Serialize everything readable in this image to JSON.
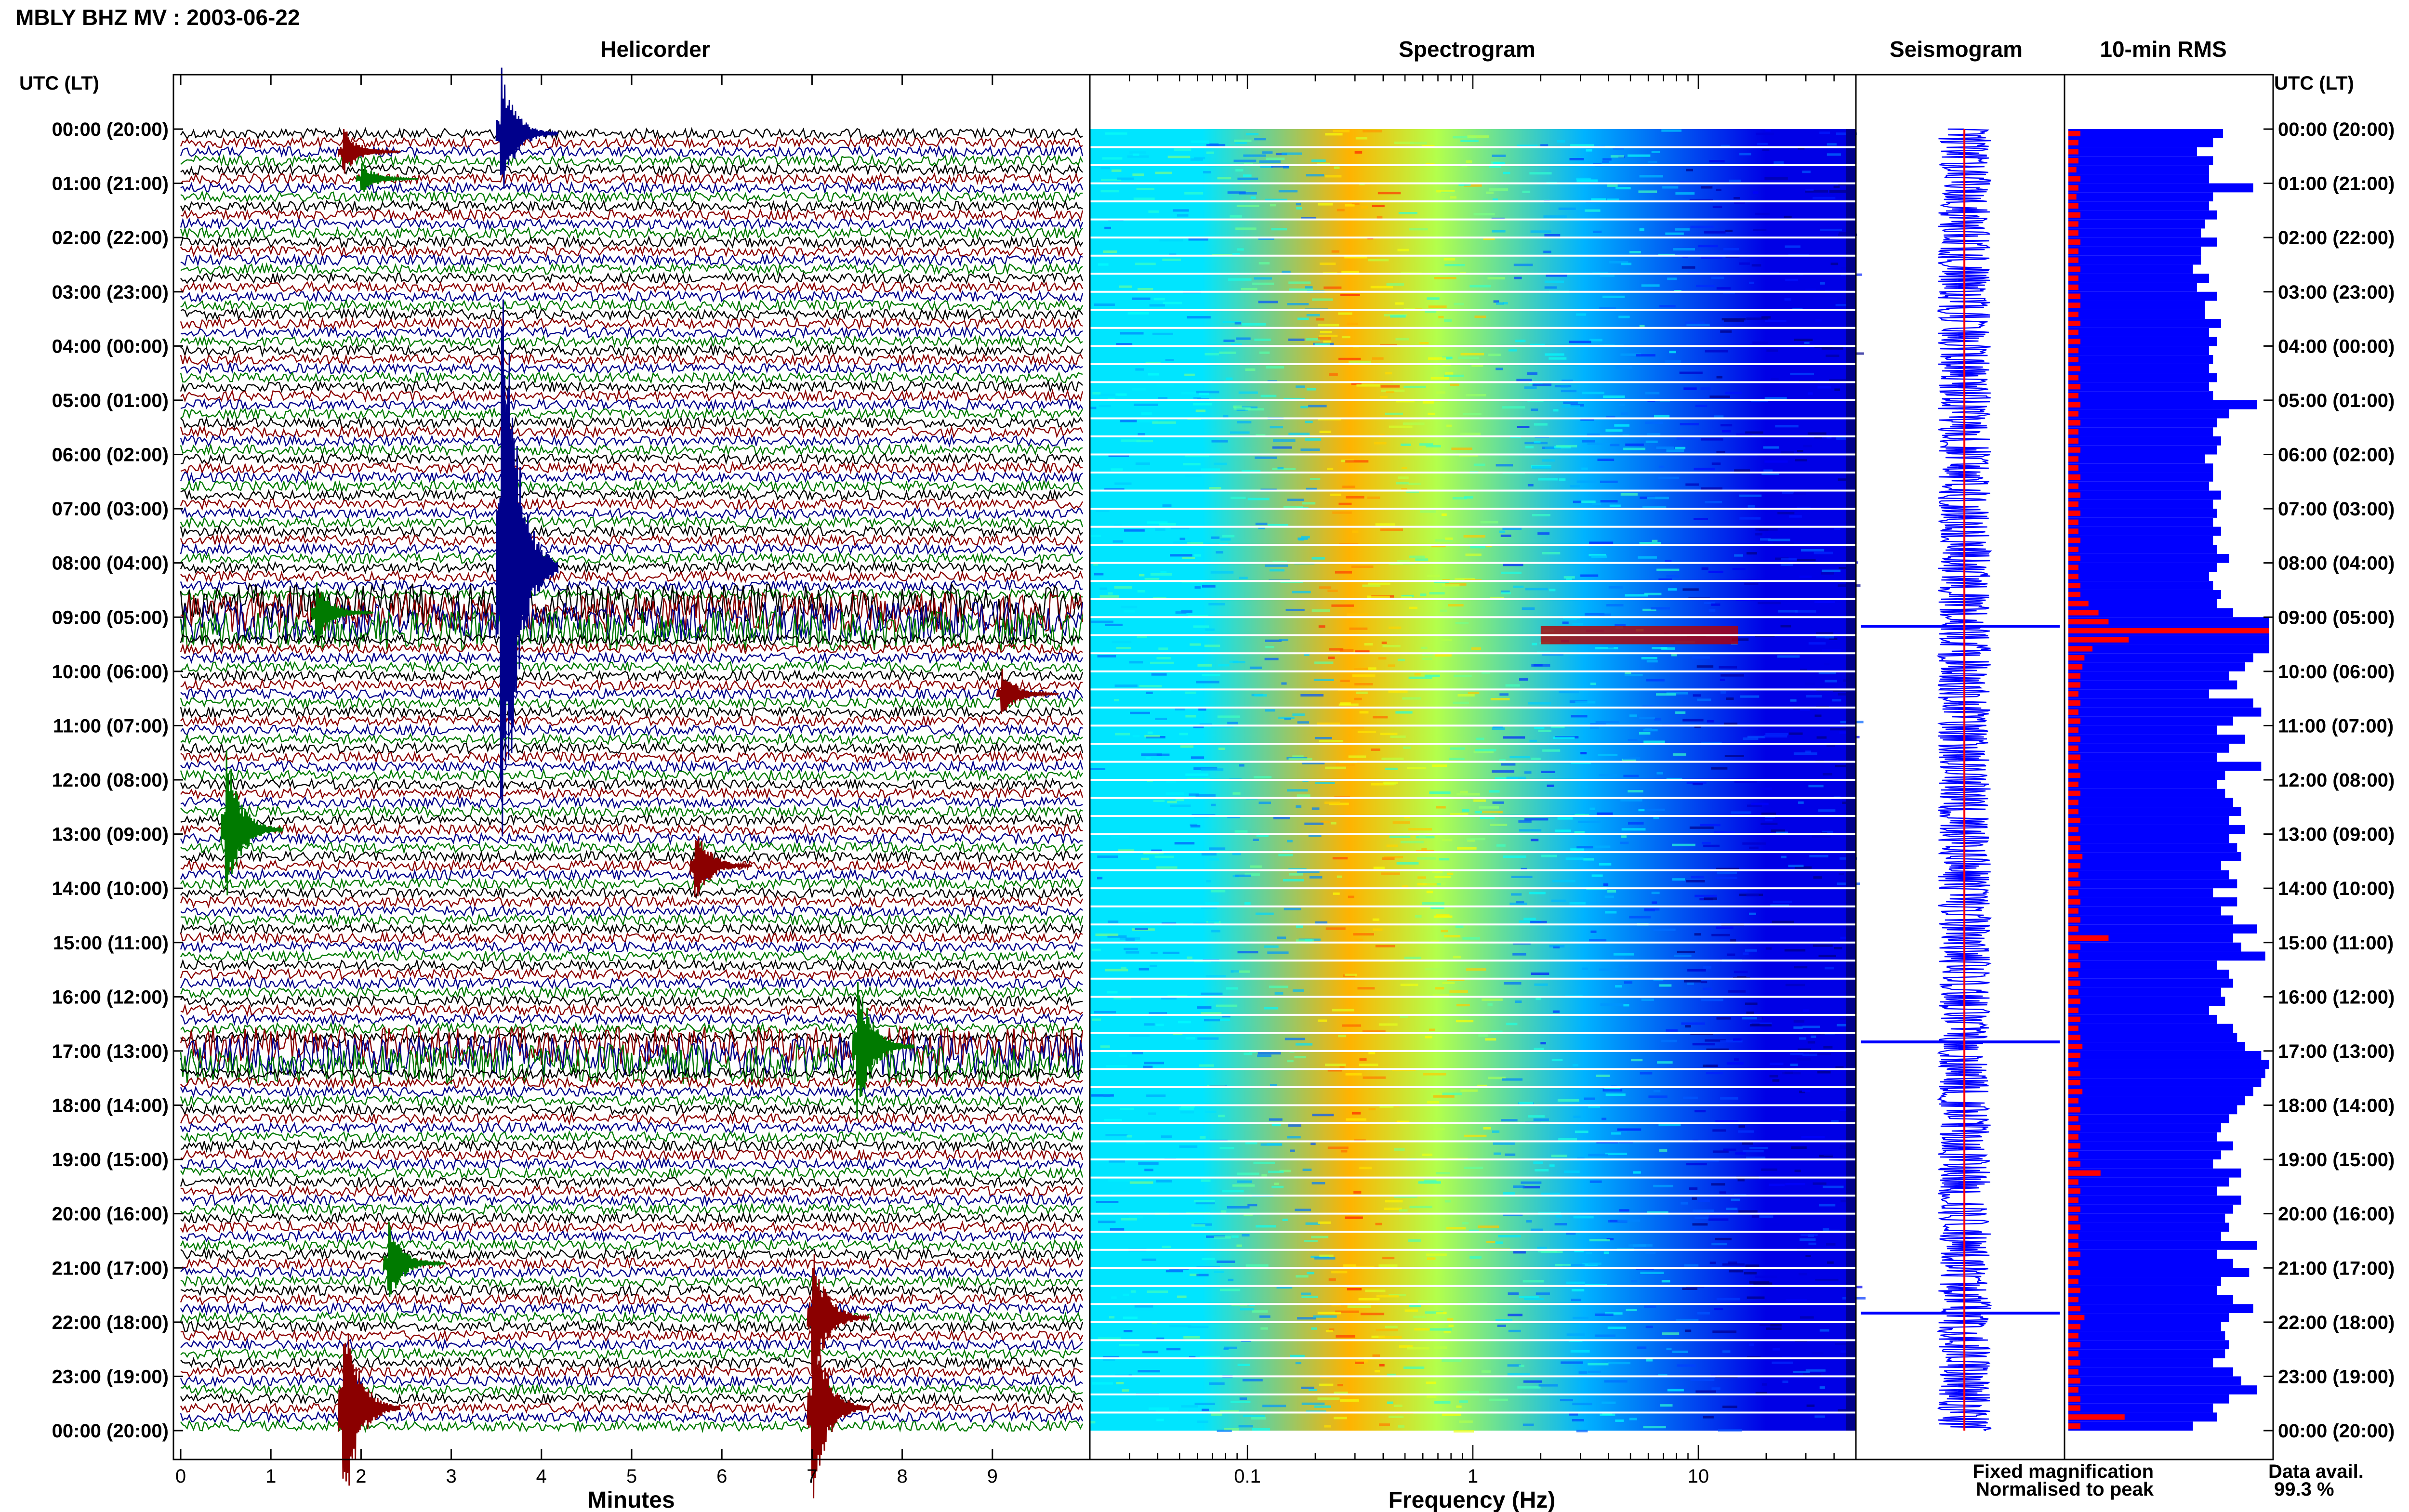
{
  "header": {
    "station_title": "MBLY BHZ MV : 2003-06-22",
    "time_axis_label": "UTC (LT)"
  },
  "panels": {
    "helicorder": "Helicorder",
    "spectrogram": "Spectrogram",
    "seismogram": "Seismogram",
    "rms": "10-min RMS"
  },
  "time_labels": [
    "00:00 (20:00)",
    "01:00 (21:00)",
    "02:00 (22:00)",
    "03:00 (23:00)",
    "04:00 (00:00)",
    "05:00 (01:00)",
    "06:00 (02:00)",
    "07:00 (03:00)",
    "08:00 (04:00)",
    "09:00 (05:00)",
    "10:00 (06:00)",
    "11:00 (07:00)",
    "12:00 (08:00)",
    "13:00 (09:00)",
    "14:00 (10:00)",
    "15:00 (11:00)",
    "16:00 (12:00)",
    "17:00 (13:00)",
    "18:00 (14:00)",
    "19:00 (15:00)",
    "20:00 (16:00)",
    "21:00 (17:00)",
    "22:00 (18:00)",
    "23:00 (19:00)",
    "00:00 (20:00)"
  ],
  "legend": {
    "fixed": "Fixed magnification",
    "normalised": "Normalised to peak",
    "fixed_color": "#0000ff",
    "normalised_color": "#ff0000",
    "avail_label": "Data avail.",
    "avail_value": "99.3 %"
  },
  "colors": {
    "trace_cycle": [
      "#000000",
      "#8b0000",
      "#00008b",
      "#007a00"
    ],
    "rms_blue": "#0000ff",
    "rms_red": "#ff0000"
  },
  "chart_data": [
    {
      "type": "line",
      "panel": "helicorder",
      "xlabel": "Minutes",
      "x_ticks": [
        "0",
        "1",
        "2",
        "3",
        "4",
        "5",
        "6",
        "7",
        "8",
        "9"
      ],
      "xlim": [
        0,
        10
      ],
      "rows": 144,
      "events": [
        {
          "row": 2,
          "minute": 1.8,
          "amp": 3,
          "color": 1
        },
        {
          "row": 5,
          "minute": 2.0,
          "amp": 2,
          "color": 3
        },
        {
          "row": 0,
          "minute": 3.55,
          "amp": 8,
          "color": 2
        },
        {
          "row": 48,
          "minute": 3.55,
          "amp": 45,
          "color": 2
        },
        {
          "row": 53,
          "minute": 1.5,
          "amp": 4,
          "color": 3
        },
        {
          "row": 62,
          "minute": 9.1,
          "amp": 3,
          "color": 1
        },
        {
          "row": 77,
          "minute": 0.5,
          "amp": 10,
          "color": 3
        },
        {
          "row": 81,
          "minute": 5.7,
          "amp": 5,
          "color": 1
        },
        {
          "row": 101,
          "minute": 7.5,
          "amp": 9,
          "color": 3
        },
        {
          "row": 125,
          "minute": 2.3,
          "amp": 5,
          "color": 3
        },
        {
          "row": 131,
          "minute": 7.0,
          "amp": 9,
          "color": 1
        },
        {
          "row": 141,
          "minute": 1.8,
          "amp": 14,
          "color": 1
        },
        {
          "row": 141,
          "minute": 7.0,
          "amp": 12,
          "color": 1
        }
      ],
      "noisy_rows": [
        52,
        53,
        54,
        55,
        101,
        102,
        103
      ]
    },
    {
      "type": "heatmap",
      "panel": "spectrogram",
      "xlabel": "Frequency (Hz)",
      "x_scale": "log",
      "x_ticks": [
        "0.1",
        "1",
        "10"
      ],
      "xlim": [
        0.02,
        50
      ],
      "bands_hz": [
        {
          "from": 0.02,
          "to": 0.2,
          "level": 0.35
        },
        {
          "from": 0.2,
          "to": 0.4,
          "level": 0.7
        },
        {
          "from": 0.4,
          "to": 1.2,
          "level": 0.55
        },
        {
          "from": 1.2,
          "to": 8,
          "level": 0.3
        },
        {
          "from": 8,
          "to": 50,
          "level": 0.1
        }
      ],
      "event_rows": [
        {
          "row": 55,
          "from_hz": 2,
          "to_hz": 15,
          "level": 0.95
        }
      ]
    },
    {
      "type": "line",
      "panel": "seismogram",
      "description_values": {
        "baseline_halfwidth": 0.2,
        "spike_rows": [
          55,
          101,
          131
        ]
      }
    },
    {
      "type": "bar",
      "panel": "rms",
      "orientation": "horizontal",
      "fixed_magnification_values": [
        0.77,
        0.72,
        0.64,
        0.72,
        0.7,
        0.7,
        0.92,
        0.72,
        0.7,
        0.74,
        0.68,
        0.66,
        0.74,
        0.66,
        0.66,
        0.62,
        0.7,
        0.64,
        0.74,
        0.68,
        0.68,
        0.76,
        0.7,
        0.74,
        0.7,
        0.72,
        0.7,
        0.74,
        0.7,
        0.72,
        0.94,
        0.8,
        0.74,
        0.72,
        0.76,
        0.74,
        0.68,
        0.72,
        0.72,
        0.7,
        0.76,
        0.72,
        0.74,
        0.72,
        0.76,
        0.72,
        0.74,
        0.8,
        0.74,
        0.7,
        0.72,
        0.76,
        0.74,
        0.82,
        1.0,
        1.0,
        1.0,
        1.0,
        0.92,
        0.88,
        0.8,
        0.84,
        0.7,
        0.92,
        0.96,
        0.82,
        0.74,
        0.88,
        0.8,
        0.74,
        0.96,
        0.78,
        0.74,
        0.78,
        0.82,
        0.86,
        0.8,
        0.88,
        0.8,
        0.84,
        0.86,
        0.76,
        0.8,
        0.84,
        0.72,
        0.84,
        0.76,
        0.82,
        0.94,
        0.82,
        0.86,
        0.98,
        0.74,
        0.8,
        0.82,
        0.76,
        0.78,
        0.7,
        0.74,
        0.82,
        0.84,
        0.88,
        0.96,
        1.0,
        0.98,
        0.96,
        0.92,
        0.88,
        0.84,
        0.8,
        0.76,
        0.74,
        0.82,
        0.76,
        0.72,
        0.86,
        0.8,
        0.74,
        0.86,
        0.82,
        0.78,
        0.8,
        0.76,
        0.94,
        0.74,
        0.82,
        0.9,
        0.76,
        0.74,
        0.82,
        0.92,
        0.8,
        0.76,
        0.78,
        0.8,
        0.78,
        0.72,
        0.82,
        0.86,
        0.94,
        0.8,
        0.72,
        0.74,
        0.62
      ],
      "normalised_values": [
        0.06,
        0.05,
        0.05,
        0.05,
        0.04,
        0.06,
        0.05,
        0.04,
        0.05,
        0.06,
        0.05,
        0.05,
        0.06,
        0.05,
        0.05,
        0.06,
        0.05,
        0.05,
        0.06,
        0.06,
        0.05,
        0.06,
        0.05,
        0.06,
        0.05,
        0.05,
        0.06,
        0.05,
        0.06,
        0.05,
        0.06,
        0.05,
        0.06,
        0.05,
        0.05,
        0.06,
        0.05,
        0.05,
        0.06,
        0.05,
        0.06,
        0.05,
        0.06,
        0.05,
        0.05,
        0.06,
        0.05,
        0.06,
        0.05,
        0.05,
        0.06,
        0.06,
        0.1,
        0.15,
        0.2,
        1.0,
        0.3,
        0.12,
        0.08,
        0.07,
        0.06,
        0.06,
        0.05,
        0.06,
        0.05,
        0.06,
        0.05,
        0.06,
        0.05,
        0.06,
        0.05,
        0.06,
        0.05,
        0.06,
        0.05,
        0.05,
        0.06,
        0.05,
        0.06,
        0.06,
        0.07,
        0.06,
        0.05,
        0.06,
        0.05,
        0.06,
        0.05,
        0.06,
        0.05,
        0.2,
        0.06,
        0.05,
        0.06,
        0.05,
        0.06,
        0.05,
        0.06,
        0.05,
        0.06,
        0.05,
        0.06,
        0.07,
        0.06,
        0.05,
        0.06,
        0.06,
        0.07,
        0.05,
        0.06,
        0.05,
        0.06,
        0.05,
        0.06,
        0.05,
        0.06,
        0.16,
        0.05,
        0.06,
        0.05,
        0.06,
        0.05,
        0.06,
        0.05,
        0.05,
        0.06,
        0.05,
        0.06,
        0.05,
        0.06,
        0.05,
        0.06,
        0.08,
        0.06,
        0.05,
        0.06,
        0.05,
        0.06,
        0.05,
        0.06,
        0.05,
        0.06,
        0.06,
        0.28,
        0.06
      ]
    }
  ]
}
